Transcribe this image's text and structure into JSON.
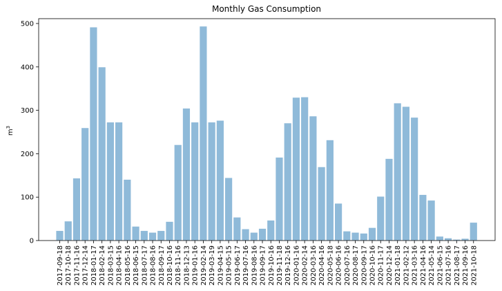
{
  "chart_data": {
    "type": "bar",
    "title": "Monthly Gas Consumption",
    "xlabel": "",
    "ylabel": "m³",
    "ylim": [
      0,
      500
    ],
    "yticks": [
      0,
      100,
      200,
      300,
      400,
      500
    ],
    "grid": false,
    "colors": {
      "bar": "#8fbad9",
      "bar_edge": "#ffffff",
      "axis": "#000000"
    },
    "categories": [
      "2017-09-18",
      "2017-10-18",
      "2017-11-16",
      "2017-12-14",
      "2018-01-17",
      "2018-02-14",
      "2018-03-15",
      "2018-04-16",
      "2018-05-16",
      "2018-06-15",
      "2018-07-17",
      "2018-08-16",
      "2018-09-17",
      "2018-10-16",
      "2018-11-16",
      "2018-12-13",
      "2019-01-16",
      "2019-02-14",
      "2019-03-19",
      "2019-04-15",
      "2019-05-15",
      "2019-06-17",
      "2019-07-16",
      "2019-08-16",
      "2019-09-17",
      "2019-10-16",
      "2019-11-18",
      "2019-12-16",
      "2020-01-16",
      "2020-02-14",
      "2020-03-16",
      "2020-04-16",
      "2020-05-18",
      "2020-06-16",
      "2020-07-16",
      "2020-08-17",
      "2020-09-17",
      "2020-10-16",
      "2020-11-17",
      "2020-12-14",
      "2021-01-18",
      "2021-02-12",
      "2021-03-16",
      "2021-04-16",
      "2021-05-14",
      "2021-06-15",
      "2021-07-16",
      "2021-08-17",
      "2021-09-16",
      "2021-10-18"
    ],
    "values": [
      23,
      45,
      144,
      260,
      492,
      400,
      273,
      273,
      141,
      33,
      23,
      19,
      23,
      44,
      221,
      305,
      273,
      494,
      273,
      277,
      145,
      54,
      27,
      19,
      28,
      47,
      192,
      271,
      330,
      331,
      287,
      170,
      232,
      86,
      22,
      19,
      17,
      30,
      102,
      189,
      317,
      309,
      284,
      106,
      93,
      10,
      6,
      3,
      5,
      42
    ]
  }
}
